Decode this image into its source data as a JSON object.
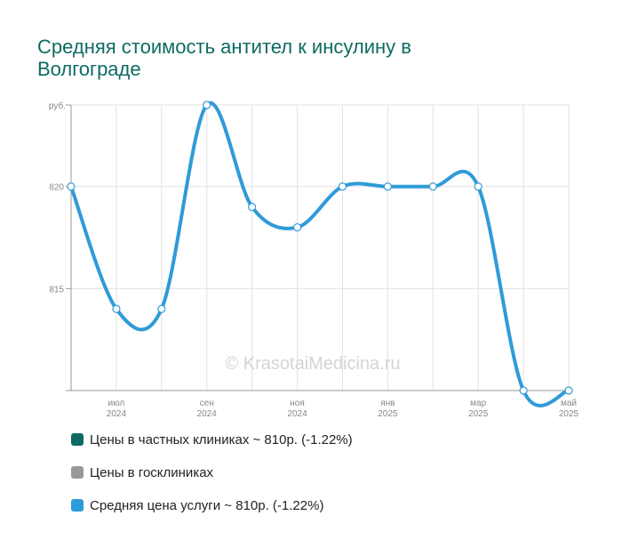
{
  "title": "Средняя стоимость антител к инсулину в Волгограде",
  "watermark": "© KrasotaiMedicina.ru",
  "chart_data": {
    "type": "line",
    "y_unit": "руб.",
    "ylim": [
      810,
      824
    ],
    "yticks": [
      815,
      820
    ],
    "x_ticks": [
      {
        "x": 1,
        "month": "июл",
        "year": "2024"
      },
      {
        "x": 3,
        "month": "сен",
        "year": "2024"
      },
      {
        "x": 5,
        "month": "ноя",
        "year": "2024"
      },
      {
        "x": 7,
        "month": "янв",
        "year": "2025"
      },
      {
        "x": 9,
        "month": "мар",
        "year": "2025"
      },
      {
        "x": 11,
        "month": "май",
        "year": "2025"
      }
    ],
    "xlim": [
      0,
      11
    ],
    "grid": true,
    "series": [
      {
        "x": [
          0,
          1,
          2,
          3,
          4,
          5,
          6,
          7,
          8,
          9,
          10,
          11
        ],
        "values": [
          820,
          814,
          814,
          824,
          819,
          818,
          820,
          820,
          820,
          820,
          810,
          810
        ],
        "color": "#2f9bd8"
      }
    ]
  },
  "legend": [
    {
      "label": "Цены в частных клиниках ~ 810р. (-1.22%)",
      "color": "#0e6b63"
    },
    {
      "label": "Цены в госклиниках",
      "color": "#999999"
    },
    {
      "label": "Средняя цена услуги ~ 810р. (-1.22%)",
      "color": "#2e9cdb"
    }
  ]
}
